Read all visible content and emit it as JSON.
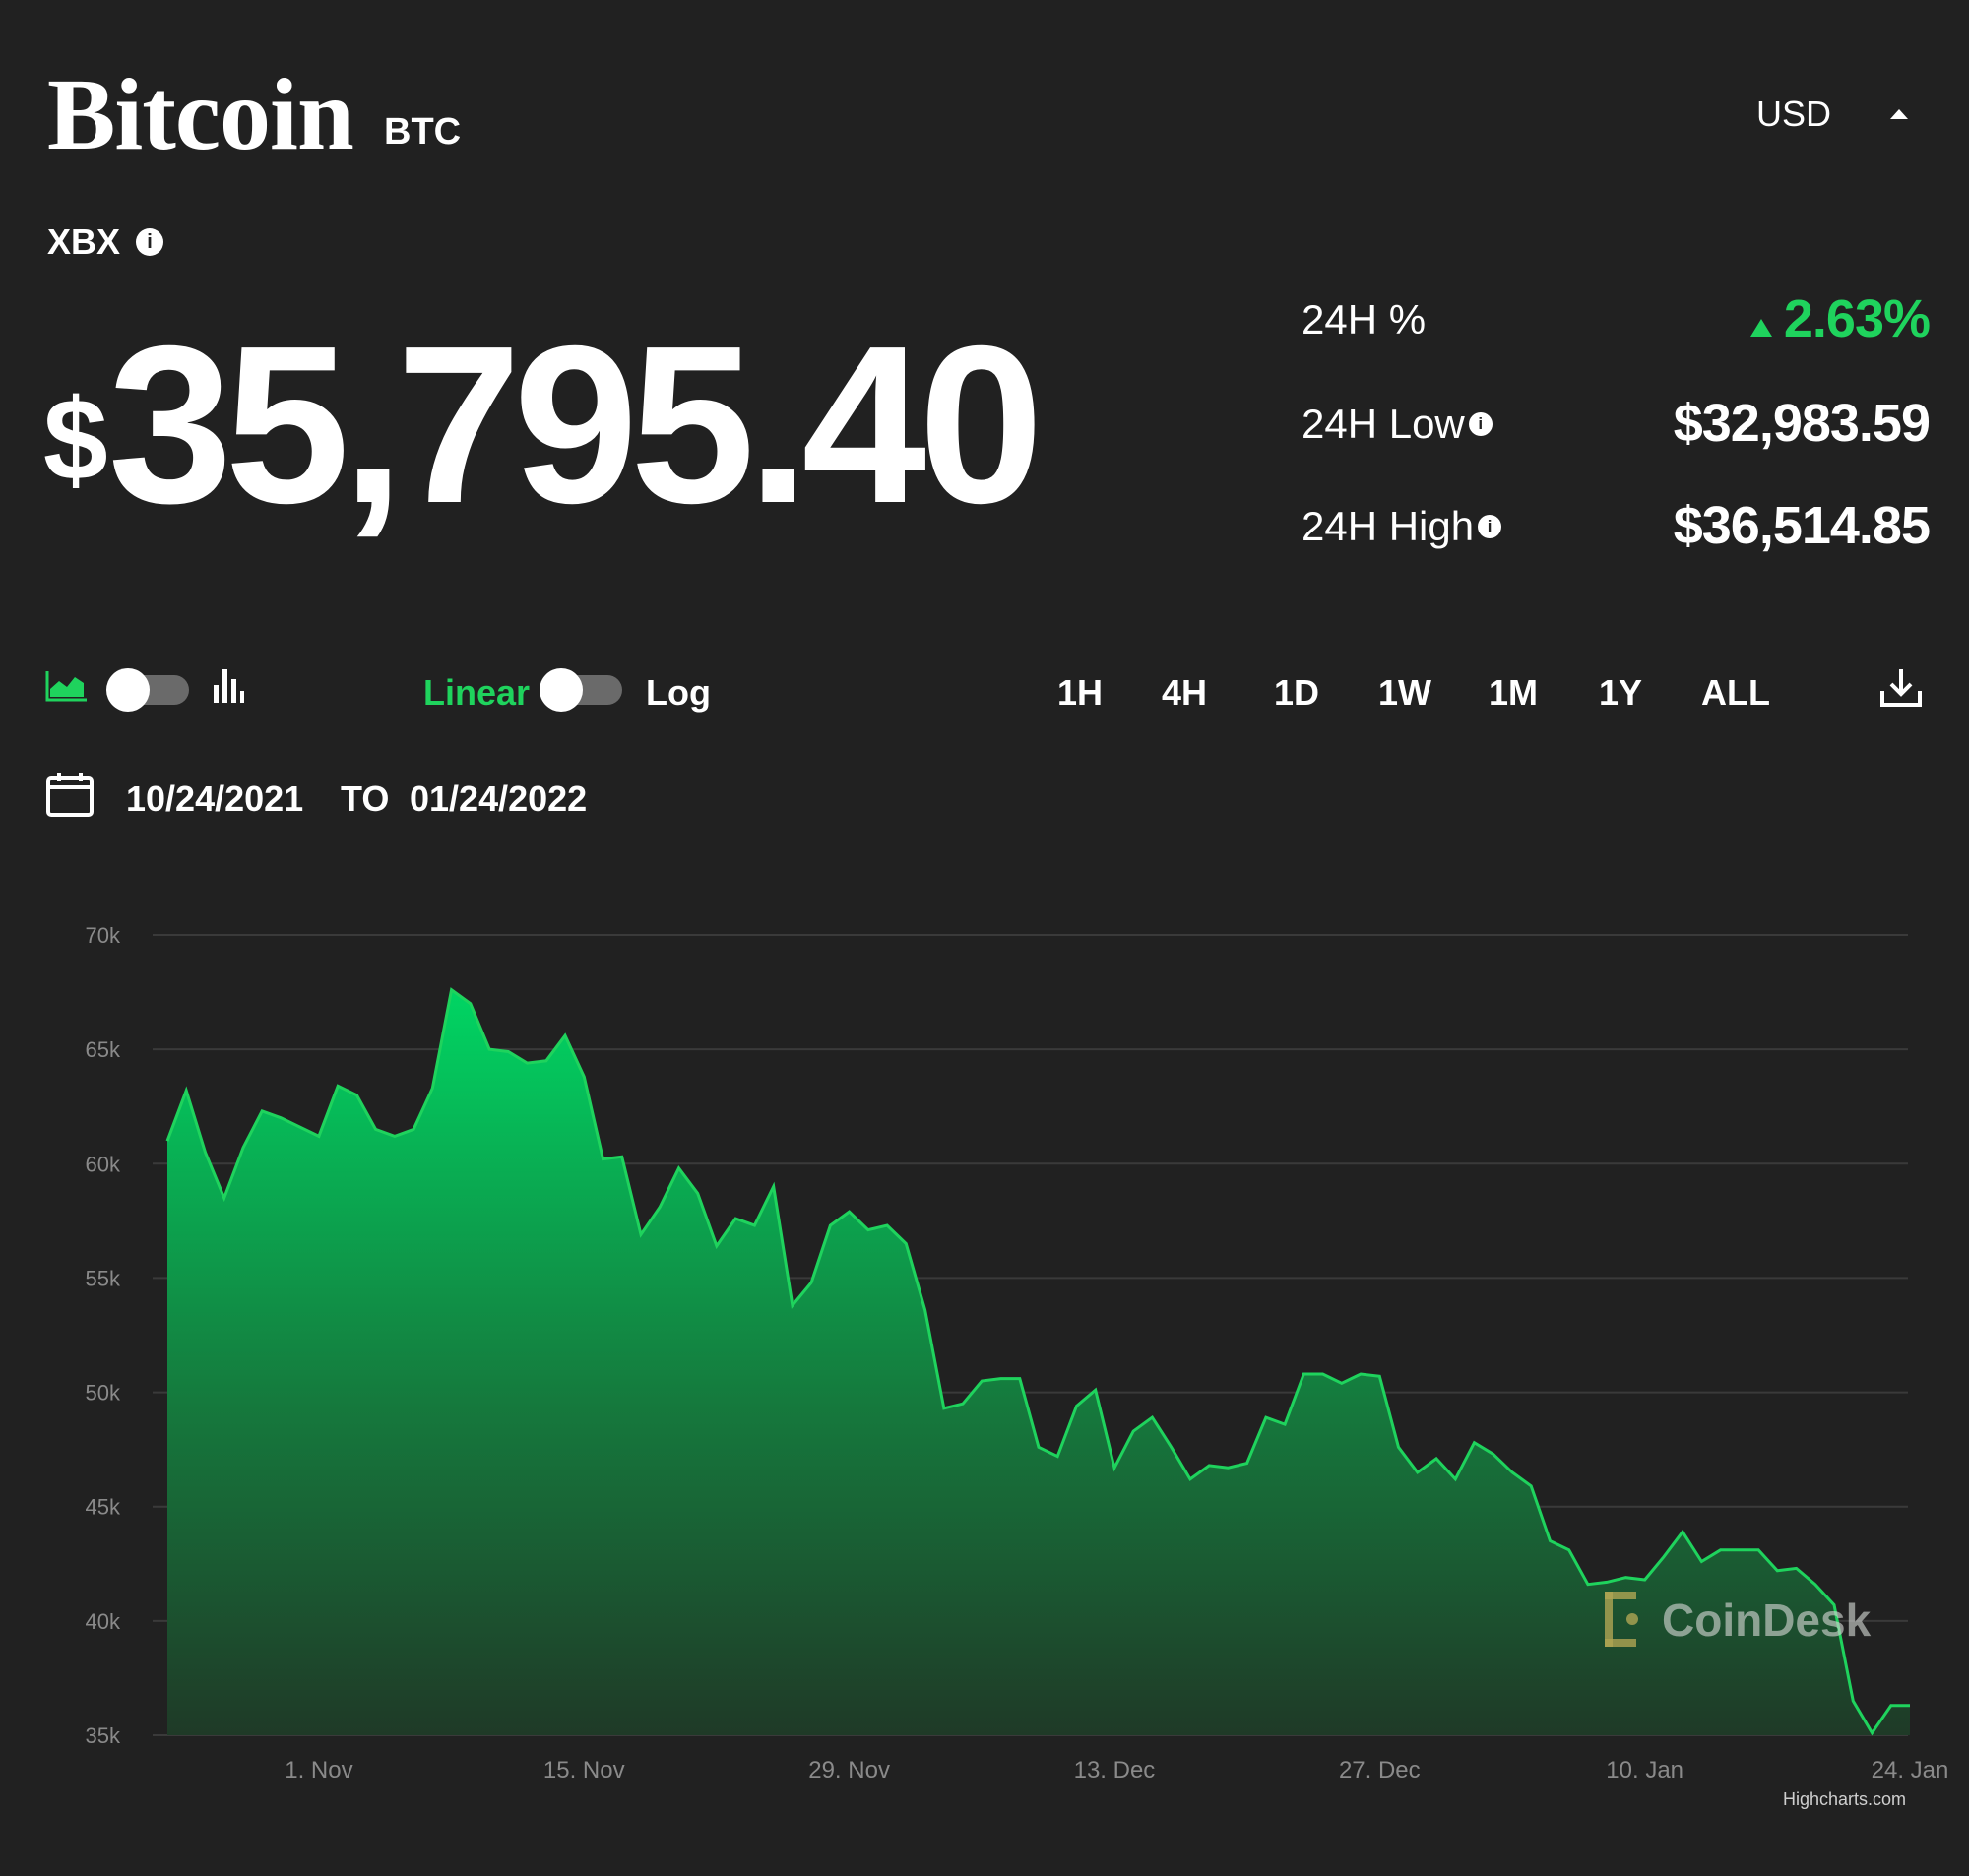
{
  "header": {
    "asset_name": "Bitcoin",
    "asset_symbol": "BTC",
    "currency": "USD",
    "index_label": "XBX"
  },
  "price": {
    "currency_sign": "$",
    "amount": "35,795.40"
  },
  "stats": {
    "change_label": "24H %",
    "change_value": "2.63%",
    "low_label": "24H Low",
    "low_value": "$32,983.59",
    "high_label": "24H High",
    "high_value": "$36,514.85"
  },
  "controls": {
    "linear_label": "Linear",
    "log_label": "Log",
    "ranges": [
      "1H",
      "4H",
      "1D",
      "1W",
      "1M",
      "1Y",
      "ALL"
    ],
    "date_from": "10/24/2021",
    "date_to_label": "TO",
    "date_to": "01/24/2022"
  },
  "icons": {
    "area_chart": "area-chart-icon",
    "bar_chart": "bar-chart-icon",
    "calendar": "calendar-icon",
    "download": "download-icon",
    "info": "info-icon",
    "caret": "caret-up-icon"
  },
  "colors": {
    "background": "#212121",
    "accent_green": "#1fd35d",
    "grid": "#3a3a3a",
    "axis_text": "#8a8a8a",
    "watermark": "#c9b45a"
  },
  "watermark": {
    "brand": "CoinDesk",
    "credit": "Highcharts.com"
  },
  "chart_data": {
    "type": "area",
    "x_start": "2021-10-24",
    "x_end": "2022-01-24",
    "ylim": [
      35000,
      70000
    ],
    "y_ticks": [
      "70k",
      "65k",
      "60k",
      "55k",
      "50k",
      "45k",
      "40k",
      "35k"
    ],
    "y_tick_values": [
      70000,
      65000,
      60000,
      55000,
      50000,
      45000,
      40000,
      35000
    ],
    "x_ticks": [
      "1. Nov",
      "15. Nov",
      "29. Nov",
      "13. Dec",
      "27. Dec",
      "10. Jan",
      "24. Jan"
    ],
    "x_tick_dates": [
      "2021-11-01",
      "2021-11-15",
      "2021-11-29",
      "2021-12-13",
      "2021-12-27",
      "2022-01-10",
      "2022-01-24"
    ],
    "grid": true,
    "legend": "none",
    "series": [
      {
        "x": [
          "2021-10-24",
          "2021-10-25",
          "2021-10-26",
          "2021-10-27",
          "2021-10-28",
          "2021-10-29",
          "2021-10-30",
          "2021-10-31",
          "2021-11-01",
          "2021-11-02",
          "2021-11-03",
          "2021-11-04",
          "2021-11-05",
          "2021-11-06",
          "2021-11-07",
          "2021-11-08",
          "2021-11-09",
          "2021-11-10",
          "2021-11-11",
          "2021-11-12",
          "2021-11-13",
          "2021-11-14",
          "2021-11-15",
          "2021-11-16",
          "2021-11-17",
          "2021-11-18",
          "2021-11-19",
          "2021-11-20",
          "2021-11-21",
          "2021-11-22",
          "2021-11-23",
          "2021-11-24",
          "2021-11-25",
          "2021-11-26",
          "2021-11-27",
          "2021-11-28",
          "2021-11-29",
          "2021-11-30",
          "2021-12-01",
          "2021-12-02",
          "2021-12-03",
          "2021-12-04",
          "2021-12-05",
          "2021-12-06",
          "2021-12-07",
          "2021-12-08",
          "2021-12-09",
          "2021-12-10",
          "2021-12-11",
          "2021-12-12",
          "2021-12-13",
          "2021-12-14",
          "2021-12-15",
          "2021-12-16",
          "2021-12-17",
          "2021-12-18",
          "2021-12-19",
          "2021-12-20",
          "2021-12-21",
          "2021-12-22",
          "2021-12-23",
          "2021-12-24",
          "2021-12-25",
          "2021-12-26",
          "2021-12-27",
          "2021-12-28",
          "2021-12-29",
          "2021-12-30",
          "2021-12-31",
          "2022-01-01",
          "2022-01-02",
          "2022-01-03",
          "2022-01-04",
          "2022-01-05",
          "2022-01-06",
          "2022-01-07",
          "2022-01-08",
          "2022-01-09",
          "2022-01-10",
          "2022-01-11",
          "2022-01-12",
          "2022-01-13",
          "2022-01-14",
          "2022-01-15",
          "2022-01-16",
          "2022-01-17",
          "2022-01-18",
          "2022-01-19",
          "2022-01-20",
          "2022-01-21",
          "2022-01-22",
          "2022-01-23",
          "2022-01-24"
        ],
        "values": [
          61000,
          63200,
          60500,
          58500,
          60700,
          62300,
          62000,
          61600,
          61200,
          63400,
          63000,
          61500,
          61200,
          61500,
          63300,
          67600,
          67000,
          65000,
          64900,
          64400,
          64500,
          65600,
          63800,
          60200,
          60300,
          56900,
          58100,
          59800,
          58700,
          56400,
          57600,
          57300,
          59000,
          53800,
          54800,
          57300,
          57900,
          57100,
          57300,
          56500,
          53600,
          49300,
          49500,
          50500,
          50600,
          50600,
          47600,
          47200,
          49400,
          50100,
          46700,
          48300,
          48900,
          47600,
          46200,
          46800,
          46700,
          46900,
          48900,
          48600,
          50800,
          50800,
          50400,
          50800,
          50700,
          47600,
          46500,
          47100,
          46200,
          47800,
          47300,
          46500,
          45900,
          43500,
          43100,
          41600,
          41700,
          41900,
          41800,
          42800,
          43900,
          42600,
          43100,
          43100,
          43100,
          42200,
          42300,
          41600,
          40700,
          36500,
          35100,
          36300,
          36300
        ]
      }
    ]
  }
}
